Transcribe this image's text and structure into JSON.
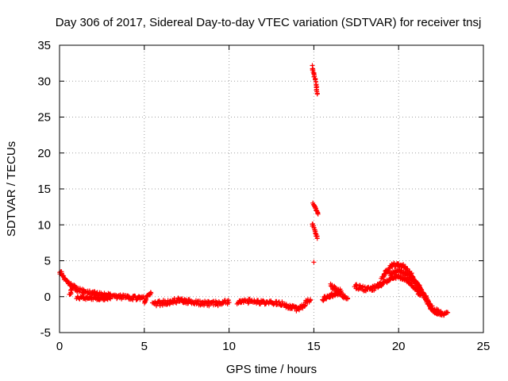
{
  "chart_data": {
    "type": "scatter",
    "title": "Day 306 of 2017, Sidereal Day-to-day VTEC variation (SDTVAR) for receiver tnsj",
    "xlabel": "GPS time / hours",
    "ylabel": "SDTVAR / TECUs",
    "xlim": [
      0,
      25
    ],
    "ylim": [
      -5,
      35
    ],
    "xticks": [
      0,
      5,
      10,
      15,
      20,
      25
    ],
    "yticks": [
      -5,
      0,
      5,
      10,
      15,
      20,
      25,
      30,
      35
    ],
    "grid": true,
    "marker": "+",
    "color": "#ff0000",
    "series": [
      {
        "name": "SDTVAR",
        "segments": [
          {
            "x": [
              0.0,
              0.15,
              0.3,
              0.5,
              0.7
            ],
            "y": [
              3.5,
              3.2,
              2.6,
              2.0,
              1.5
            ],
            "spread": 0.5
          },
          {
            "x": [
              0.6,
              0.8,
              1.0,
              1.5,
              2.0,
              2.5,
              3.0,
              3.5,
              4.0,
              4.5,
              5.0
            ],
            "y": [
              0.3,
              1.5,
              1.0,
              0.7,
              0.5,
              0.3,
              0.1,
              0.0,
              -0.1,
              -0.2,
              -0.3
            ],
            "spread": 0.6
          },
          {
            "x": [
              1.0,
              1.5,
              2.0,
              2.5,
              3.0
            ],
            "y": [
              -0.1,
              -0.2,
              -0.2,
              -0.3,
              -0.3
            ],
            "spread": 0.4
          },
          {
            "x": [
              5.0,
              5.2,
              5.4
            ],
            "y": [
              -0.8,
              0.2,
              0.5
            ],
            "spread": 0.4
          },
          {
            "x": [
              5.5,
              6.0,
              6.5,
              7.0,
              7.5,
              8.0,
              8.5,
              9.0,
              9.5,
              10.0
            ],
            "y": [
              -1.0,
              -0.9,
              -0.7,
              -0.5,
              -0.6,
              -0.8,
              -0.9,
              -1.0,
              -0.9,
              -0.8
            ],
            "spread": 0.7
          },
          {
            "x": [
              10.5,
              11.0,
              11.5,
              12.0,
              12.5,
              13.0,
              13.5,
              14.0,
              14.5
            ],
            "y": [
              -0.8,
              -0.6,
              -0.7,
              -0.8,
              -0.8,
              -0.9,
              -1.3,
              -1.7,
              -1.2
            ],
            "spread": 0.6
          },
          {
            "x": [
              14.5,
              14.8
            ],
            "y": [
              -0.8,
              -0.5
            ],
            "spread": 0.5
          },
          {
            "x": [
              14.9,
              15.0,
              15.1,
              15.2
            ],
            "y": [
              32.0,
              31.0,
              30.0,
              28.2
            ],
            "spread": 0.4
          },
          {
            "x": [
              14.95,
              15.05,
              15.15,
              15.25
            ],
            "y": [
              13.0,
              12.6,
              12.1,
              11.5
            ],
            "spread": 0.3
          },
          {
            "x": [
              14.9,
              15.0,
              15.1,
              15.2
            ],
            "y": [
              10.2,
              9.6,
              8.9,
              8.1
            ],
            "spread": 0.3
          },
          {
            "x": [
              15.0
            ],
            "y": [
              4.8
            ],
            "spread": 0.0
          },
          {
            "x": [
              15.5,
              15.8,
              16.0,
              16.3,
              16.6
            ],
            "y": [
              -0.3,
              -0.1,
              0.1,
              0.4,
              0.8
            ],
            "spread": 0.7
          },
          {
            "x": [
              16.0,
              16.3,
              16.6,
              17.0
            ],
            "y": [
              1.5,
              1.0,
              0.4,
              -0.2
            ],
            "spread": 0.6
          },
          {
            "x": [
              17.4,
              17.8,
              18.2,
              18.6,
              19.0
            ],
            "y": [
              1.5,
              1.2,
              1.0,
              1.2,
              1.8
            ],
            "spread": 0.7
          },
          {
            "x": [
              19.0,
              19.3,
              19.6,
              19.9,
              20.3,
              20.7,
              21.0,
              21.5,
              22.0,
              22.5
            ],
            "y": [
              2.5,
              3.5,
              4.3,
              4.6,
              4.2,
              3.3,
              2.0,
              0.0,
              -1.7,
              -2.3
            ],
            "spread": 0.6
          },
          {
            "x": [
              19.5,
              19.8,
              20.1,
              20.5,
              21.0,
              21.4,
              21.7,
              22.0
            ],
            "y": [
              3.0,
              3.6,
              3.6,
              3.0,
              2.0,
              0.8,
              -0.5,
              -1.6
            ],
            "spread": 0.5
          },
          {
            "x": [
              18.8,
              19.2,
              19.6,
              20.0,
              20.4,
              20.8,
              21.3
            ],
            "y": [
              1.5,
              2.0,
              2.6,
              2.8,
              2.4,
              1.6,
              0.2
            ],
            "spread": 0.4
          },
          {
            "x": [
              21.8,
              22.2,
              22.6,
              22.9
            ],
            "y": [
              -1.4,
              -2.3,
              -2.5,
              -2.2
            ],
            "spread": 0.4
          }
        ]
      }
    ]
  }
}
